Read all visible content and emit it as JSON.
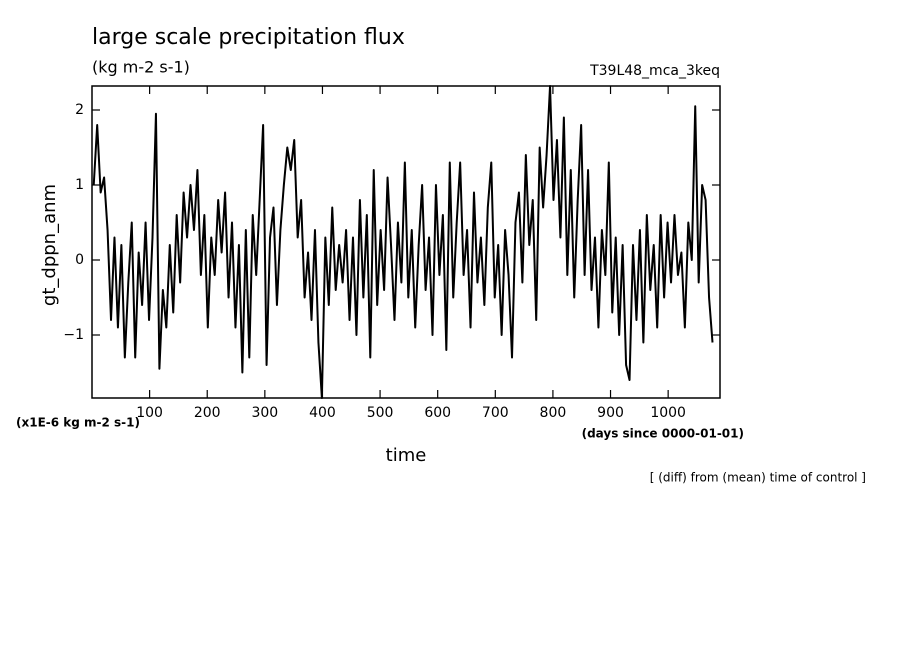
{
  "chart_data": {
    "type": "line",
    "title": "large scale precipitation flux",
    "subtitle": "(kg m-2 s-1)",
    "run_label": "T39L48_mca_3keq",
    "y_label": "gt_dppn_anm",
    "x_label": "time",
    "y_units": "(x1E-6 kg m-2 s-1)",
    "x_units": "(days since 0000-01-01)",
    "annotation": "[ (diff) from (mean) time of control ]",
    "xlim": [
      0,
      1090
    ],
    "ylim": [
      -1.84,
      2.32
    ],
    "xticks": [
      100,
      200,
      300,
      400,
      500,
      600,
      700,
      800,
      900,
      1000
    ],
    "yticks": [
      {
        "value": -1,
        "label": "−1"
      },
      0,
      1,
      2
    ],
    "x": [
      3,
      9,
      15,
      21,
      27,
      33,
      39,
      45,
      51,
      57,
      63,
      69,
      75,
      81,
      87,
      93,
      99,
      105,
      111,
      117,
      123,
      129,
      135,
      141,
      147,
      153,
      159,
      165,
      171,
      177,
      183,
      189,
      195,
      201,
      207,
      213,
      219,
      225,
      231,
      237,
      243,
      249,
      255,
      261,
      267,
      273,
      279,
      285,
      291,
      297,
      303,
      309,
      315,
      321,
      327,
      333,
      339,
      345,
      351,
      357,
      363,
      369,
      375,
      381,
      387,
      393,
      399,
      405,
      411,
      417,
      423,
      429,
      435,
      441,
      447,
      453,
      459,
      465,
      471,
      477,
      483,
      489,
      495,
      501,
      507,
      513,
      519,
      525,
      531,
      537,
      543,
      549,
      555,
      561,
      567,
      573,
      579,
      585,
      591,
      597,
      603,
      609,
      615,
      621,
      627,
      633,
      639,
      645,
      651,
      657,
      663,
      669,
      675,
      681,
      687,
      693,
      699,
      705,
      711,
      717,
      723,
      729,
      735,
      741,
      747,
      753,
      759,
      765,
      771,
      777,
      783,
      789,
      795,
      801,
      807,
      813,
      819,
      825,
      831,
      837,
      843,
      849,
      855,
      861,
      867,
      873,
      879,
      885,
      891,
      897,
      903,
      909,
      915,
      921,
      927,
      933,
      939,
      945,
      951,
      957,
      963,
      969,
      975,
      981,
      987,
      993,
      999,
      1005,
      1011,
      1017,
      1023,
      1029,
      1035,
      1041,
      1047,
      1053,
      1059,
      1065,
      1071,
      1077
    ],
    "series": [
      {
        "color": "#000000",
        "values": [
          1.0,
          1.8,
          0.9,
          1.1,
          0.4,
          -0.8,
          0.3,
          -0.9,
          0.2,
          -1.3,
          -0.3,
          0.5,
          -1.3,
          0.1,
          -0.6,
          0.5,
          -0.8,
          0.3,
          1.95,
          -1.45,
          -0.4,
          -0.9,
          0.2,
          -0.7,
          0.6,
          -0.3,
          0.9,
          0.3,
          1.0,
          0.4,
          1.2,
          -0.2,
          0.6,
          -0.9,
          0.3,
          -0.2,
          0.8,
          0.1,
          0.9,
          -0.5,
          0.5,
          -0.9,
          0.2,
          -1.5,
          0.4,
          -1.3,
          0.6,
          -0.2,
          0.8,
          1.8,
          -1.4,
          0.3,
          0.7,
          -0.6,
          0.4,
          1.0,
          1.5,
          1.2,
          1.6,
          0.3,
          0.8,
          -0.5,
          0.1,
          -0.8,
          0.4,
          -1.1,
          -1.84,
          0.3,
          -0.6,
          0.7,
          -0.4,
          0.2,
          -0.3,
          0.4,
          -0.8,
          0.3,
          -1.0,
          0.8,
          -0.5,
          0.6,
          -1.3,
          1.2,
          -0.6,
          0.4,
          -0.4,
          1.1,
          0.2,
          -0.8,
          0.5,
          -0.3,
          1.3,
          -0.5,
          0.4,
          -0.9,
          0.2,
          1.0,
          -0.4,
          0.3,
          -1.0,
          1.0,
          -0.2,
          0.6,
          -1.2,
          1.3,
          -0.5,
          0.5,
          1.3,
          -0.2,
          0.4,
          -0.9,
          0.9,
          -0.3,
          0.3,
          -0.6,
          0.7,
          1.3,
          -0.5,
          0.2,
          -1.0,
          0.4,
          -0.2,
          -1.3,
          0.5,
          0.9,
          -0.3,
          1.4,
          0.2,
          0.8,
          -0.8,
          1.5,
          0.7,
          1.4,
          2.32,
          0.8,
          1.6,
          0.3,
          1.9,
          -0.2,
          1.2,
          -0.5,
          0.8,
          1.8,
          -0.2,
          1.2,
          -0.4,
          0.3,
          -0.9,
          0.4,
          -0.2,
          1.3,
          -0.7,
          0.3,
          -1.0,
          0.2,
          -1.4,
          -1.6,
          0.2,
          -0.8,
          0.4,
          -1.1,
          0.6,
          -0.4,
          0.2,
          -0.9,
          0.6,
          -0.5,
          0.5,
          -0.3,
          0.6,
          -0.2,
          0.1,
          -0.9,
          0.5,
          0.0,
          2.05,
          -0.3,
          1.0,
          0.8,
          -0.5,
          -1.1
        ]
      }
    ]
  }
}
